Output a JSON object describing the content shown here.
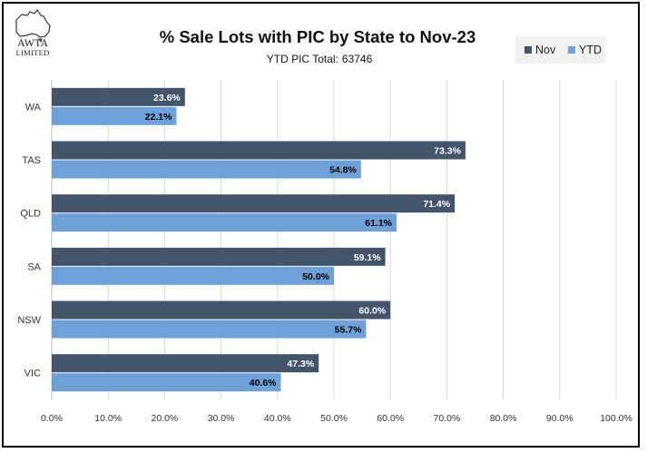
{
  "logo": {
    "name": "AWTA",
    "sub": "LIMITED"
  },
  "chart_data": {
    "type": "bar",
    "orientation": "horizontal",
    "title": "% Sale Lots with PIC by State to Nov-23",
    "subtitle_label": "YTD PIC Total:",
    "subtitle_value": "63746",
    "categories": [
      "WA",
      "TAS",
      "QLD",
      "SA",
      "NSW",
      "VIC"
    ],
    "series": [
      {
        "name": "Nov",
        "color": "#44546a",
        "values": [
          23.6,
          73.3,
          71.4,
          59.1,
          60.0,
          47.3
        ],
        "labels": [
          "23.6%",
          "73.3%",
          "71.4%",
          "59.1%",
          "60.0%",
          "47.3%"
        ]
      },
      {
        "name": "YTD",
        "color": "#6fa0d8",
        "values": [
          22.1,
          54.8,
          61.1,
          50.0,
          55.7,
          40.6
        ],
        "labels": [
          "22.1%",
          "54.8%",
          "61.1%",
          "50.0%",
          "55.7%",
          "40.6%"
        ]
      }
    ],
    "xlim": [
      0,
      100
    ],
    "xticks": [
      "0.0%",
      "10.0%",
      "20.0%",
      "30.0%",
      "40.0%",
      "50.0%",
      "60.0%",
      "70.0%",
      "80.0%",
      "90.0%",
      "100.0%"
    ],
    "grid": true,
    "legend_position": "top-right"
  }
}
